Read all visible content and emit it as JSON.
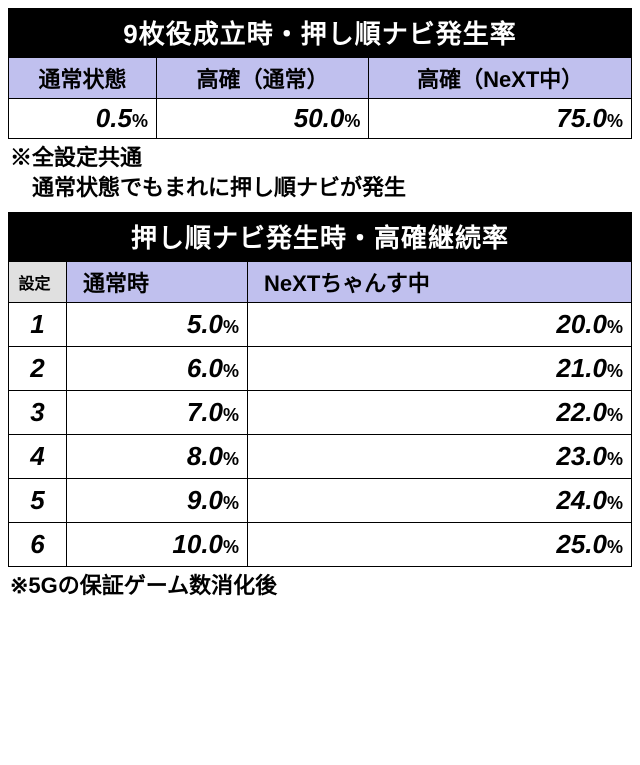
{
  "table1": {
    "title": "9枚役成立時・押し順ナビ発生率",
    "columns": [
      "通常状態",
      "高確（通常）",
      "高確（NeXT中）"
    ],
    "values": [
      "0.5",
      "50.0",
      "75.0"
    ],
    "note_line1": "※全設定共通",
    "note_line2": "　通常状態でもまれに押し順ナビが発生"
  },
  "table2": {
    "title": "押し順ナビ発生時・高確継続率",
    "settei_label": "設定",
    "columns": [
      "通常時",
      "NeXTちゃんす中"
    ],
    "rows": [
      {
        "settei": "1",
        "v1": "5.0",
        "v2": "20.0"
      },
      {
        "settei": "2",
        "v1": "6.0",
        "v2": "21.0"
      },
      {
        "settei": "3",
        "v1": "7.0",
        "v2": "22.0"
      },
      {
        "settei": "4",
        "v1": "8.0",
        "v2": "23.0"
      },
      {
        "settei": "5",
        "v1": "9.0",
        "v2": "24.0"
      },
      {
        "settei": "6",
        "v1": "10.0",
        "v2": "25.0"
      }
    ],
    "note": "※5Gの保証ゲーム数消化後"
  },
  "pct_label": "%"
}
